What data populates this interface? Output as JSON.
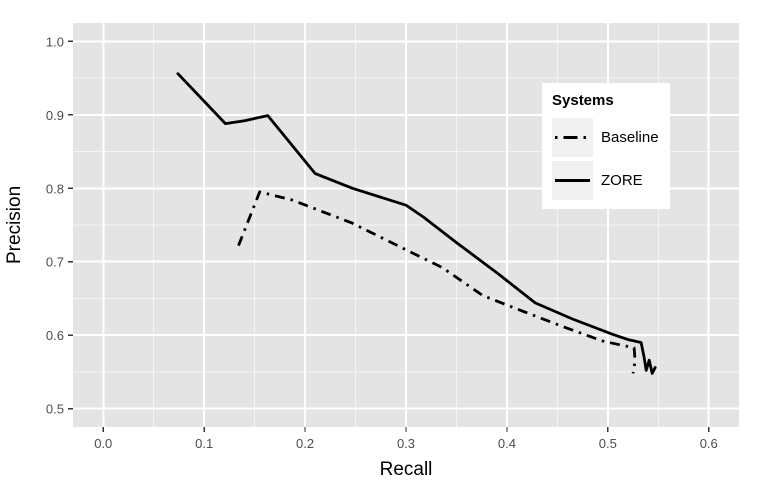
{
  "styles": {
    "panel_bg": "#e4e4e4",
    "grid_major_color": "#ffffff",
    "grid_minor_color": "#f5f5f5",
    "tick_mark_color": "#333333",
    "tick_label_color": "#4d4d4d",
    "line_color": "#000000",
    "legend_bg": "#ffffff",
    "legend_key_bg": "#f0f0f0"
  },
  "chart_data": {
    "type": "line",
    "title": "",
    "xlabel": "Recall",
    "ylabel": "Precision",
    "xlim": [
      0.0,
      0.6
    ],
    "ylim": [
      0.5,
      1.0
    ],
    "xticks": [
      0.0,
      0.1,
      0.2,
      0.3,
      0.4,
      0.5,
      0.6
    ],
    "yticks": [
      0.5,
      0.6,
      0.7,
      0.8,
      0.9,
      1.0
    ],
    "xtick_labels": [
      "0.0",
      "0.1",
      "0.2",
      "0.3",
      "0.4",
      "0.5",
      "0.6"
    ],
    "ytick_labels": [
      "0.5",
      "0.6",
      "0.7",
      "0.8",
      "0.9",
      "1.0"
    ],
    "grid": "major+minor",
    "legend": {
      "title": "Systems",
      "position": "inside-top-right",
      "entries": [
        {
          "label": "Baseline",
          "style": "dash-dot"
        },
        {
          "label": "ZORE",
          "style": "solid"
        }
      ]
    },
    "series": [
      {
        "name": "Baseline",
        "style": "dash-dot",
        "color": "#000000",
        "points": [
          [
            0.134,
            0.722
          ],
          [
            0.155,
            0.795
          ],
          [
            0.187,
            0.784
          ],
          [
            0.246,
            0.753
          ],
          [
            0.296,
            0.719
          ],
          [
            0.336,
            0.692
          ],
          [
            0.376,
            0.654
          ],
          [
            0.415,
            0.633
          ],
          [
            0.455,
            0.612
          ],
          [
            0.495,
            0.592
          ],
          [
            0.515,
            0.586
          ],
          [
            0.526,
            0.583
          ],
          [
            0.527,
            0.565
          ],
          [
            0.525,
            0.548
          ]
        ]
      },
      {
        "name": "ZORE",
        "style": "solid",
        "color": "#000000",
        "points": [
          [
            0.074,
            0.956
          ],
          [
            0.121,
            0.888
          ],
          [
            0.14,
            0.892
          ],
          [
            0.163,
            0.899
          ],
          [
            0.21,
            0.82
          ],
          [
            0.247,
            0.8
          ],
          [
            0.3,
            0.777
          ],
          [
            0.317,
            0.761
          ],
          [
            0.35,
            0.726
          ],
          [
            0.39,
            0.685
          ],
          [
            0.428,
            0.644
          ],
          [
            0.465,
            0.622
          ],
          [
            0.505,
            0.601
          ],
          [
            0.52,
            0.594
          ],
          [
            0.533,
            0.59
          ],
          [
            0.536,
            0.57
          ],
          [
            0.538,
            0.552
          ],
          [
            0.541,
            0.566
          ],
          [
            0.544,
            0.548
          ],
          [
            0.547,
            0.556
          ]
        ]
      }
    ]
  }
}
